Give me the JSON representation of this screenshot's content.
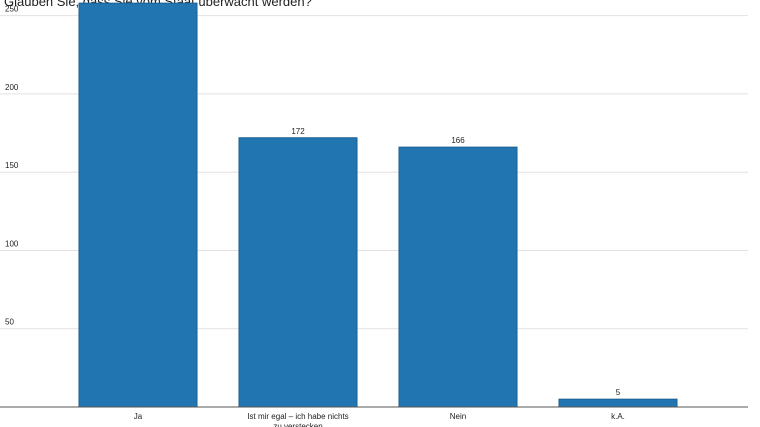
{
  "chart_data": {
    "type": "bar",
    "title": "Glauben Sie, dass Sie vom Staat überwacht werden?",
    "xlabel": "",
    "ylabel": "",
    "categories": [
      "Ja",
      "Ist mir egal – ich habe nichts zu verstecken",
      "Nein",
      "k.A."
    ],
    "values": [
      258,
      172,
      166,
      5
    ],
    "yticks": [
      50,
      100,
      150,
      200,
      250
    ],
    "ylim": [
      0,
      260
    ],
    "grid": true,
    "legend": "none",
    "colors": {
      "bar": "#2176b2",
      "bar_edge": "#1a5f91",
      "grid": "#e2e2e2",
      "axis": "#555555"
    }
  }
}
